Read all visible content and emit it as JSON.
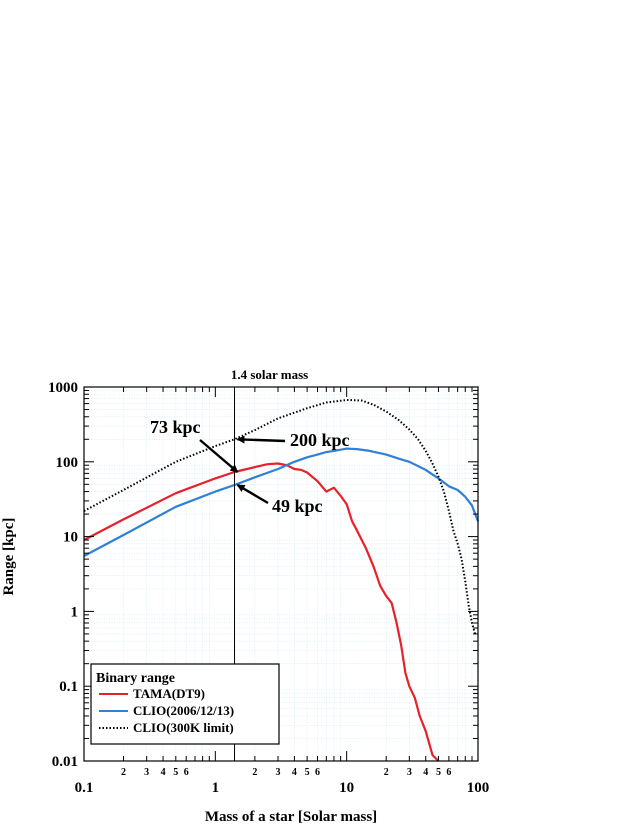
{
  "chart_data": {
    "type": "line",
    "title": "",
    "xlabel": "Mass of a star [Solar mass]",
    "ylabel": "Range [kpc]",
    "xscale": "log",
    "yscale": "log",
    "xlim": [
      0.1,
      100
    ],
    "ylim": [
      0.01,
      1000
    ],
    "grid": true,
    "legend": {
      "title": "Binary range",
      "position": "bottom-left"
    },
    "x_major_ticks": [
      "0.1",
      "1",
      "10",
      "100"
    ],
    "x_minor_tick_labels": [
      "2",
      "3",
      "4",
      "5",
      "6"
    ],
    "y_tick_labels": [
      "0.01",
      "0.1",
      "1",
      "10",
      "100",
      "1000"
    ],
    "marker_line": {
      "x": 1.4,
      "label": "1.4 solar mass"
    },
    "annotations": [
      {
        "text": "73 kpc",
        "x": 1.4,
        "y": 73
      },
      {
        "text": "200 kpc",
        "x": 1.4,
        "y": 200
      },
      {
        "text": "49 kpc",
        "x": 1.4,
        "y": 49
      }
    ],
    "series": [
      {
        "name": "TAMA(DT9)",
        "color": "#e8202a",
        "style": "solid",
        "x": [
          0.1,
          0.2,
          0.5,
          1,
          1.4,
          2,
          2.5,
          3,
          3.5,
          4,
          4.5,
          5,
          6,
          7,
          8,
          9,
          10,
          11,
          12,
          14,
          16,
          18,
          20,
          22,
          24,
          26,
          28,
          30,
          33,
          36,
          40,
          45,
          50
        ],
        "y": [
          9,
          17,
          38,
          60,
          73,
          85,
          93,
          95,
          90,
          80,
          78,
          72,
          55,
          40,
          45,
          35,
          27,
          16,
          12,
          7,
          4,
          2.2,
          1.6,
          1.3,
          0.7,
          0.35,
          0.15,
          0.1,
          0.07,
          0.04,
          0.025,
          0.012,
          0.01
        ]
      },
      {
        "name": "CLIO(2006/12/13)",
        "color": "#2f80d6",
        "style": "solid",
        "x": [
          0.1,
          0.2,
          0.5,
          1,
          1.4,
          2,
          3,
          4,
          5,
          6,
          7,
          8,
          10,
          12,
          15,
          20,
          25,
          30,
          40,
          50,
          60,
          70,
          80,
          90,
          100
        ],
        "y": [
          5.5,
          10.5,
          25,
          40,
          49,
          62,
          80,
          100,
          115,
          125,
          135,
          140,
          150,
          148,
          140,
          125,
          110,
          100,
          78,
          60,
          47,
          42,
          34,
          26,
          16
        ]
      },
      {
        "name": "CLIO(300K limit)",
        "color": "#000000",
        "style": "dotted",
        "x": [
          0.1,
          0.2,
          0.5,
          1,
          1.4,
          2,
          3,
          5,
          7,
          10,
          13,
          16,
          20,
          25,
          30,
          35,
          40,
          45,
          50,
          55,
          60,
          65,
          70,
          75,
          80,
          85,
          90,
          95
        ],
        "y": [
          22,
          42,
          100,
          162,
          200,
          265,
          380,
          520,
          620,
          670,
          660,
          580,
          470,
          360,
          270,
          200,
          140,
          95,
          63,
          40,
          22,
          12,
          8,
          5,
          2.5,
          1.2,
          0.7,
          0.5
        ]
      }
    ]
  }
}
